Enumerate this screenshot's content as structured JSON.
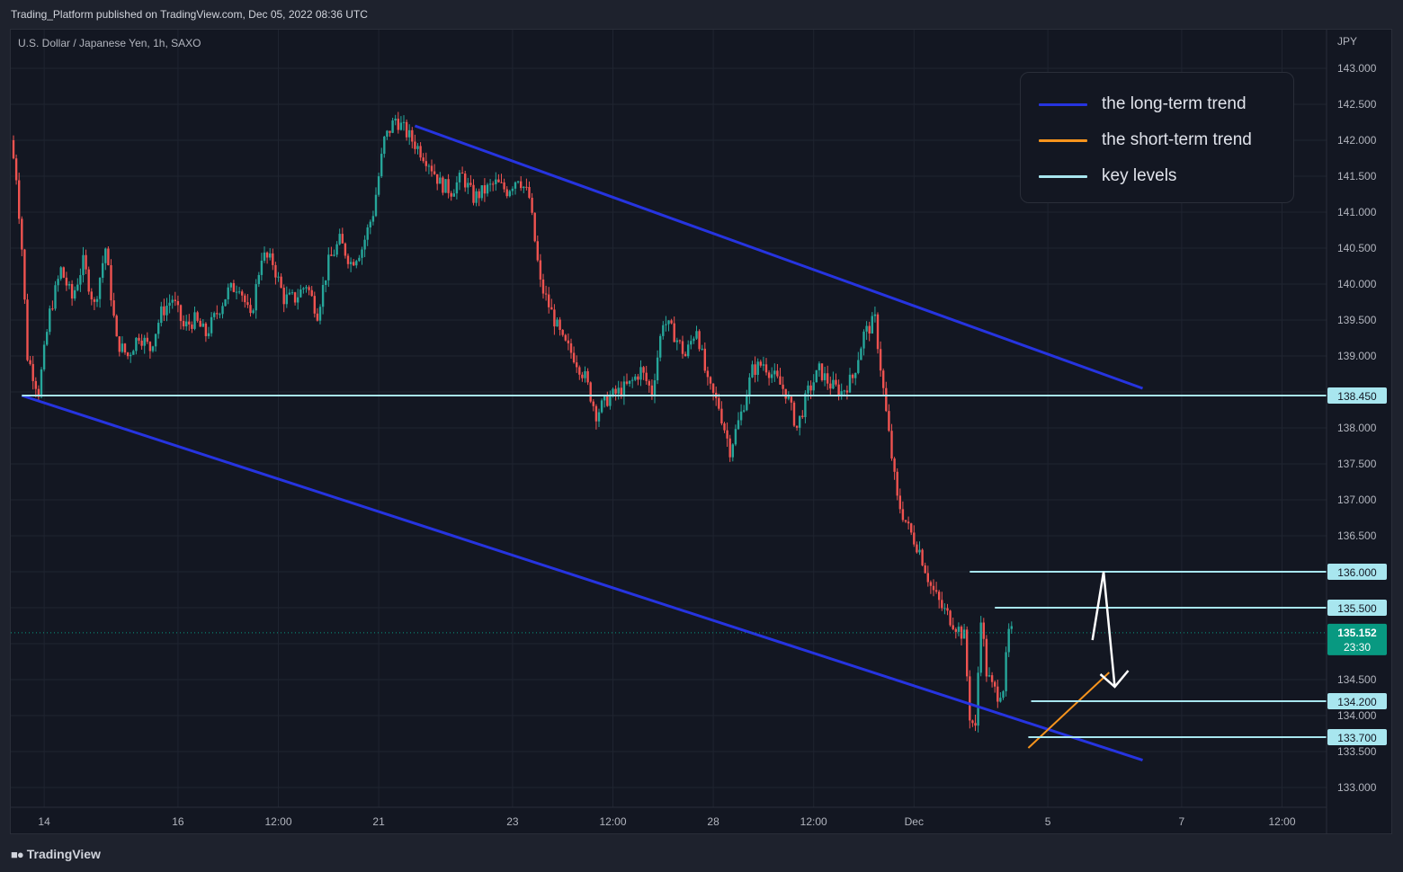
{
  "header": {
    "published": "Trading_Platform published on TradingView.com, Dec 05, 2022 08:36 UTC",
    "symbol": "U.S. Dollar / Japanese Yen, 1h, SAXO"
  },
  "footer": {
    "brand": "TradingView"
  },
  "legend": {
    "items": [
      {
        "label": "the long-term trend",
        "color": "#2634e0"
      },
      {
        "label": "the short-term trend",
        "color": "#f7941d"
      },
      {
        "label": "key levels",
        "color": "#a8e6ef"
      }
    ]
  },
  "colors": {
    "up": "#26a69a",
    "down": "#ef5350",
    "background": "#131722",
    "grid": "#1f2430",
    "trend_long": "#2634e0",
    "trend_short": "#f7941d",
    "key_level": "#a8e6ef",
    "last_price": "#089981"
  },
  "chart_data": {
    "type": "candlestick",
    "currency": "JPY",
    "ylim": [
      132.75,
      143.45
    ],
    "y_ticks": [
      "143.000",
      "142.500",
      "142.000",
      "141.500",
      "141.000",
      "140.500",
      "140.000",
      "139.500",
      "139.000",
      "138.000",
      "137.500",
      "137.000",
      "136.500",
      "134.500",
      "134.000",
      "133.500",
      "133.000"
    ],
    "x_ticks": [
      {
        "label": "14",
        "t": 11
      },
      {
        "label": "16",
        "t": 59
      },
      {
        "label": "12:00",
        "t": 95
      },
      {
        "label": "21",
        "t": 131
      },
      {
        "label": "23",
        "t": 179
      },
      {
        "label": "12:00",
        "t": 215
      },
      {
        "label": "28",
        "t": 251
      },
      {
        "label": "12:00",
        "t": 287
      },
      {
        "label": "Dec",
        "t": 323
      },
      {
        "label": "5",
        "t": 371
      },
      {
        "label": "7",
        "t": 419
      },
      {
        "label": "12:00",
        "t": 455
      }
    ],
    "key_levels": [
      {
        "value": 138.45,
        "label": "138.450",
        "from_t": 3
      },
      {
        "value": 136.0,
        "label": "136.000",
        "from_t": 343
      },
      {
        "value": 135.5,
        "label": "135.500",
        "from_t": 352
      },
      {
        "value": 134.2,
        "label": "134.200",
        "from_t": 365
      },
      {
        "value": 133.7,
        "label": "133.700",
        "from_t": 364
      }
    ],
    "last_price": {
      "value": 135.152,
      "label": "135.152",
      "countdown": "23:30"
    },
    "trend_lines": [
      {
        "kind": "long",
        "points": [
          [
            3,
            138.45
          ],
          [
            405,
            133.38
          ]
        ]
      },
      {
        "kind": "long",
        "points": [
          [
            144,
            142.2
          ],
          [
            405,
            138.55
          ]
        ]
      },
      {
        "kind": "short",
        "points": [
          [
            364,
            133.55
          ],
          [
            393,
            134.6
          ]
        ]
      }
    ],
    "projection": [
      [
        387,
        135.05
      ],
      [
        391,
        136.0
      ],
      [
        395,
        134.4
      ]
    ],
    "path": [
      [
        0,
        142.0
      ],
      [
        2,
        141.5
      ],
      [
        4,
        140.5
      ],
      [
        6,
        139.0
      ],
      [
        10,
        138.5
      ],
      [
        14,
        139.6
      ],
      [
        18,
        140.2
      ],
      [
        22,
        139.8
      ],
      [
        26,
        140.3
      ],
      [
        30,
        139.7
      ],
      [
        34,
        140.5
      ],
      [
        38,
        139.2
      ],
      [
        42,
        139.0
      ],
      [
        46,
        139.3
      ],
      [
        50,
        139.1
      ],
      [
        54,
        139.6
      ],
      [
        58,
        139.8
      ],
      [
        62,
        139.4
      ],
      [
        66,
        139.5
      ],
      [
        70,
        139.3
      ],
      [
        74,
        139.6
      ],
      [
        78,
        139.9
      ],
      [
        82,
        140.0
      ],
      [
        86,
        139.5
      ],
      [
        90,
        140.4
      ],
      [
        94,
        140.3
      ],
      [
        98,
        139.8
      ],
      [
        102,
        139.8
      ],
      [
        106,
        140.0
      ],
      [
        110,
        139.6
      ],
      [
        114,
        140.3
      ],
      [
        118,
        140.6
      ],
      [
        122,
        140.3
      ],
      [
        126,
        140.5
      ],
      [
        130,
        141.0
      ],
      [
        134,
        142.0
      ],
      [
        138,
        142.3
      ],
      [
        142,
        142.1
      ],
      [
        146,
        141.9
      ],
      [
        150,
        141.7
      ],
      [
        154,
        141.4
      ],
      [
        158,
        141.3
      ],
      [
        162,
        141.5
      ],
      [
        166,
        141.2
      ],
      [
        170,
        141.3
      ],
      [
        174,
        141.4
      ],
      [
        178,
        141.3
      ],
      [
        182,
        141.5
      ],
      [
        186,
        141.2
      ],
      [
        190,
        140.0
      ],
      [
        194,
        139.6
      ],
      [
        198,
        139.2
      ],
      [
        202,
        139.0
      ],
      [
        206,
        138.7
      ],
      [
        210,
        138.2
      ],
      [
        214,
        138.4
      ],
      [
        218,
        138.5
      ],
      [
        222,
        138.6
      ],
      [
        226,
        138.8
      ],
      [
        230,
        138.5
      ],
      [
        234,
        139.5
      ],
      [
        238,
        139.3
      ],
      [
        242,
        139.0
      ],
      [
        246,
        139.4
      ],
      [
        250,
        138.6
      ],
      [
        254,
        138.3
      ],
      [
        258,
        137.7
      ],
      [
        262,
        138.2
      ],
      [
        266,
        138.8
      ],
      [
        270,
        138.9
      ],
      [
        274,
        138.7
      ],
      [
        278,
        138.5
      ],
      [
        282,
        138.0
      ],
      [
        286,
        138.5
      ],
      [
        290,
        138.8
      ],
      [
        294,
        138.6
      ],
      [
        298,
        138.5
      ],
      [
        302,
        138.7
      ],
      [
        306,
        139.3
      ],
      [
        310,
        139.5
      ],
      [
        314,
        138.2
      ],
      [
        318,
        137.0
      ],
      [
        322,
        136.6
      ],
      [
        326,
        136.3
      ],
      [
        330,
        135.8
      ],
      [
        334,
        135.5
      ],
      [
        338,
        135.3
      ],
      [
        342,
        135.1
      ],
      [
        344,
        134.0
      ],
      [
        346,
        133.8
      ],
      [
        348,
        135.4
      ],
      [
        350,
        134.6
      ],
      [
        352,
        134.4
      ],
      [
        354,
        134.3
      ],
      [
        356,
        134.4
      ],
      [
        358,
        135.15
      ]
    ]
  }
}
